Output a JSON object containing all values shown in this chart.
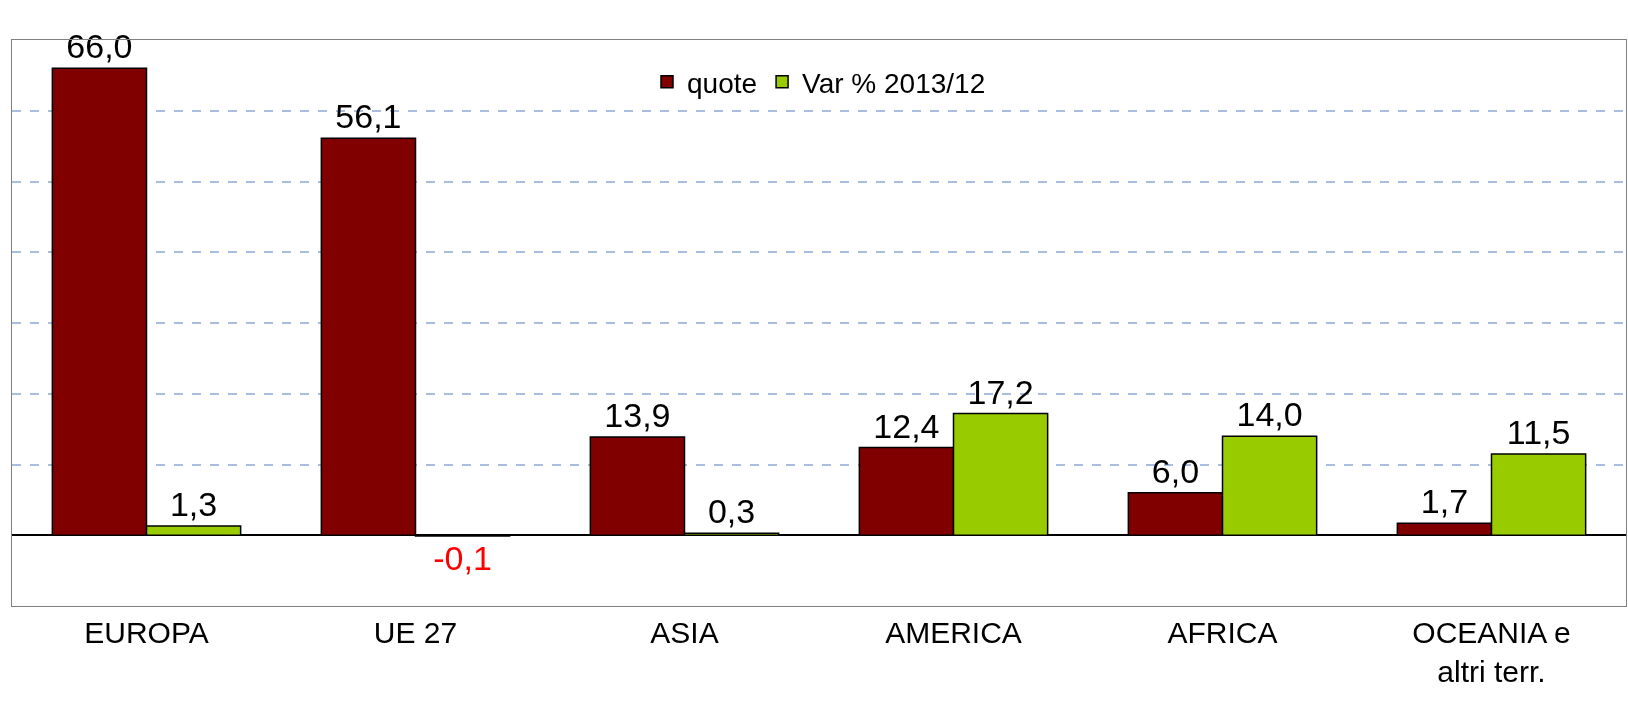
{
  "chart_data": {
    "type": "bar",
    "categories": [
      "EUROPA",
      "UE 27",
      "ASIA",
      "AMERICA",
      "AFRICA",
      "OCEANIA e\naltri terr."
    ],
    "series": [
      {
        "name": "quote",
        "color": "#800000",
        "values": [
          66.0,
          56.1,
          13.9,
          12.4,
          6.0,
          1.7
        ],
        "value_labels": [
          "66,0",
          "56,1",
          "13,9",
          "12,4",
          "6,0",
          "1,7"
        ]
      },
      {
        "name": "Var % 2013/12",
        "color": "#99cc00",
        "values": [
          1.3,
          -0.1,
          0.3,
          17.2,
          14.0,
          11.5
        ],
        "value_labels": [
          "1,3",
          "-0,1",
          "0,3",
          "17,2",
          "14,0",
          "11,5"
        ]
      }
    ],
    "ylim": [
      -10,
      70
    ],
    "yticks": [
      {
        "value": 10,
        "label": null
      },
      {
        "value": 20,
        "label": null
      },
      {
        "value": 30,
        "label": null
      },
      {
        "value": 40,
        "label": null
      },
      {
        "value": 50,
        "label": null
      },
      {
        "value": 60,
        "label": null
      }
    ],
    "tick_labels": "x",
    "grid": "y",
    "legend": "top"
  }
}
